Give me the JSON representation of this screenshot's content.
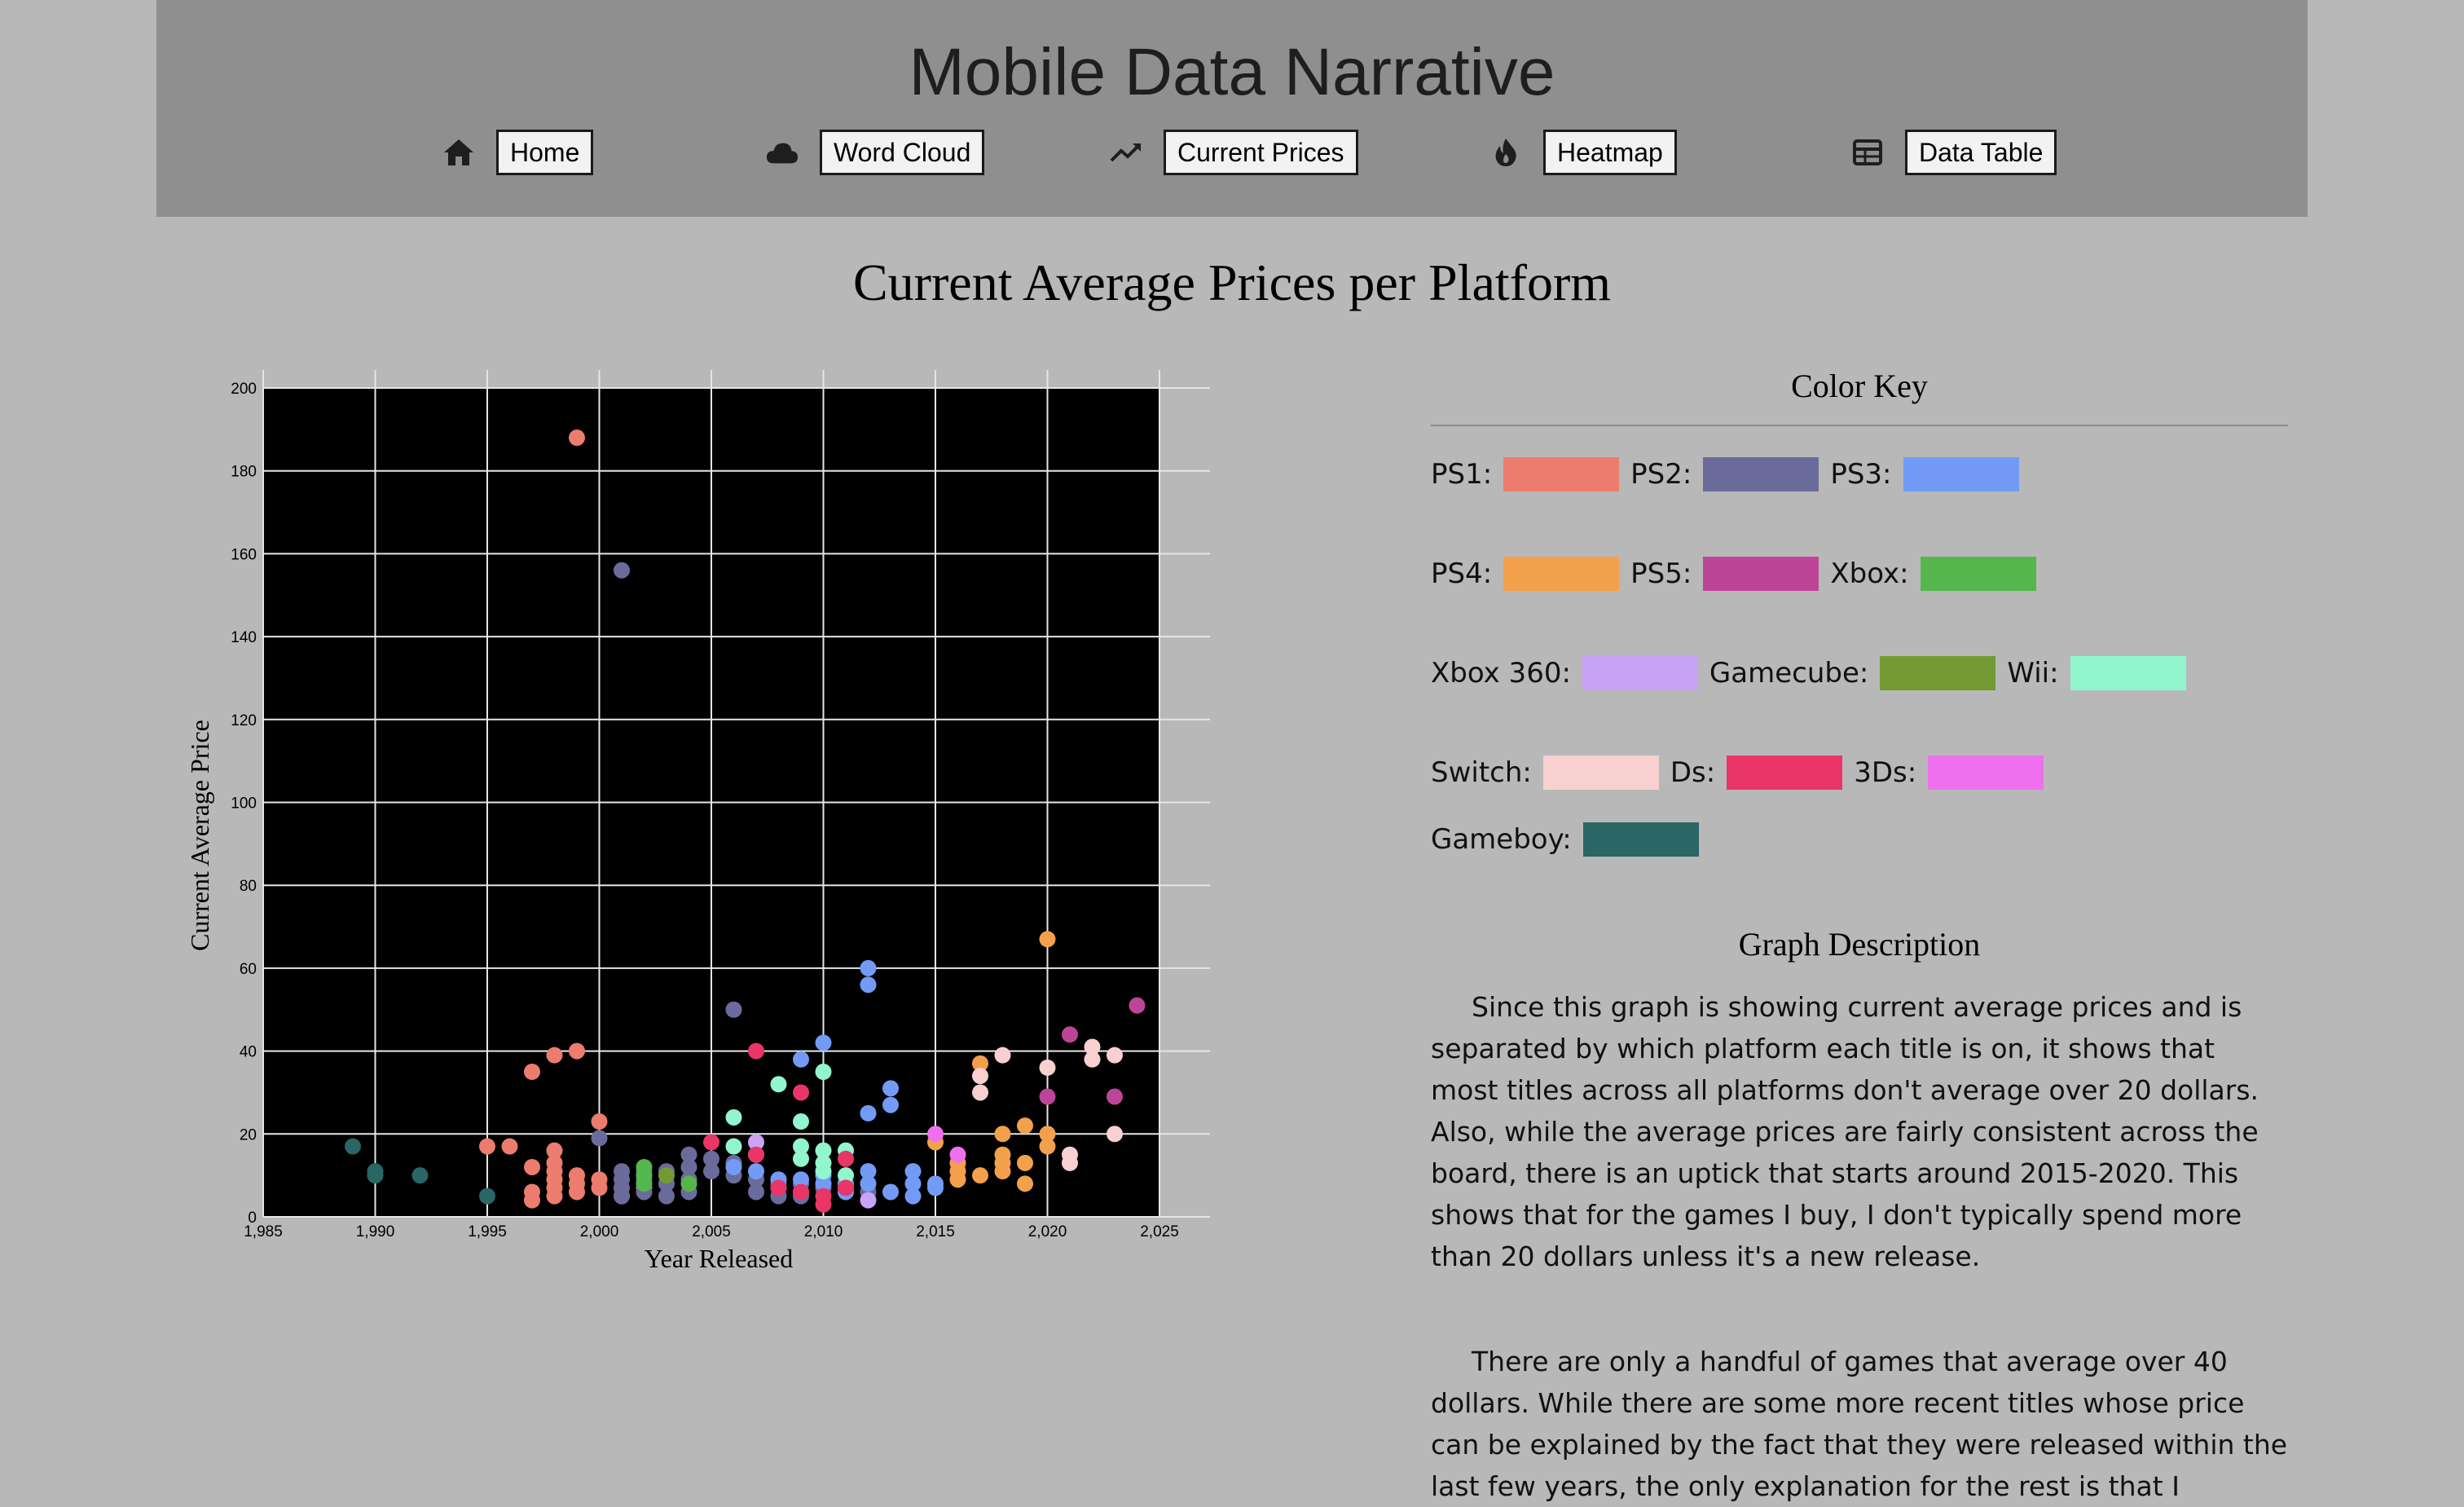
{
  "header": {
    "title": "Mobile Data Narrative",
    "nav": [
      {
        "label": "Home",
        "icon": "home-icon"
      },
      {
        "label": "Word Cloud",
        "icon": "cloud-icon"
      },
      {
        "label": "Current Prices",
        "icon": "trend-icon"
      },
      {
        "label": "Heatmap",
        "icon": "fire-icon"
      },
      {
        "label": "Data Table",
        "icon": "table-icon"
      }
    ]
  },
  "page": {
    "title": "Current Average Prices per Platform"
  },
  "colors": {
    "plot_background": "#000000",
    "grid": "#e6e6e6"
  },
  "color_key": {
    "title": "Color Key",
    "items": [
      {
        "label": "PS1:",
        "color": "#ec7c6e"
      },
      {
        "label": "PS2:",
        "color": "#6b6b9b"
      },
      {
        "label": "PS3:",
        "color": "#739bf6"
      },
      {
        "label": "PS4:",
        "color": "#f3a04c"
      },
      {
        "label": "PS5:",
        "color": "#bd4598"
      },
      {
        "label": "Xbox:",
        "color": "#55b64e"
      },
      {
        "label": "Xbox 360:",
        "color": "#c9a3f6"
      },
      {
        "label": "Gamecube:",
        "color": "#749a34"
      },
      {
        "label": "Wii:",
        "color": "#91f5cd"
      },
      {
        "label": "Switch:",
        "color": "#f8d0d0"
      },
      {
        "label": "Ds:",
        "color": "#e93567"
      },
      {
        "label": "3Ds:",
        "color": "#ef70ee"
      },
      {
        "label": "Gameboy:",
        "color": "#2a6666"
      }
    ]
  },
  "description": {
    "title": "Graph Description",
    "paragraphs": [
      "Since this graph is showing current average prices and is separated by which platform each title is on, it shows that most titles across all platforms don't average over 20 dollars. Also, while the average prices are fairly consistent across the board, there is an uptick that starts around 2015-2020. This shows that for the games I buy, I don't typically spend more than 20 dollars unless it's a new release.",
      "There are only a handful of games that average over 40 dollars. While there are some more recent titles whose price can be explained by the fact that they were released within the last few years, the only explanation for the rest is that I"
    ]
  },
  "chart_data": {
    "type": "scatter",
    "title": "",
    "xlabel": "Year Released",
    "ylabel": "Current Average Price",
    "xlim": [
      1985,
      2025
    ],
    "ylim": [
      0,
      200
    ],
    "x_ticks": [
      "1,985",
      "1,990",
      "1,995",
      "2,000",
      "2,005",
      "2,010",
      "2,015",
      "2,020",
      "2,025"
    ],
    "x_tick_values": [
      1985,
      1990,
      1995,
      2000,
      2005,
      2010,
      2015,
      2020,
      2025
    ],
    "y_ticks": [
      "0",
      "20",
      "40",
      "60",
      "80",
      "100",
      "120",
      "140",
      "160",
      "180",
      "200"
    ],
    "y_tick_values": [
      0,
      20,
      40,
      60,
      80,
      100,
      120,
      140,
      160,
      180,
      200
    ],
    "grid": true,
    "series": [
      {
        "name": "PS1",
        "points": [
          [
            1999,
            188
          ],
          [
            1997,
            35
          ],
          [
            1998,
            39
          ],
          [
            1999,
            40
          ],
          [
            2000,
            23
          ],
          [
            1995,
            17
          ],
          [
            1996,
            17
          ],
          [
            1997,
            12
          ],
          [
            1997,
            6
          ],
          [
            1997,
            4
          ],
          [
            1998,
            16
          ],
          [
            1998,
            13
          ],
          [
            1998,
            11
          ],
          [
            1998,
            9
          ],
          [
            1998,
            7
          ],
          [
            1998,
            5
          ],
          [
            1999,
            10
          ],
          [
            1999,
            8
          ],
          [
            1999,
            6
          ],
          [
            2000,
            9
          ],
          [
            2000,
            7
          ],
          [
            2001,
            5
          ],
          [
            2002,
            7
          ]
        ]
      },
      {
        "name": "PS2",
        "points": [
          [
            2001,
            156
          ],
          [
            2006,
            50
          ],
          [
            2000,
            19
          ],
          [
            2001,
            11
          ],
          [
            2001,
            9
          ],
          [
            2001,
            7
          ],
          [
            2001,
            5
          ],
          [
            2002,
            11
          ],
          [
            2002,
            9
          ],
          [
            2002,
            6
          ],
          [
            2003,
            11
          ],
          [
            2003,
            8
          ],
          [
            2003,
            5
          ],
          [
            2004,
            15
          ],
          [
            2004,
            12
          ],
          [
            2004,
            9
          ],
          [
            2004,
            6
          ],
          [
            2005,
            14
          ],
          [
            2005,
            11
          ],
          [
            2006,
            13
          ],
          [
            2006,
            10
          ],
          [
            2007,
            9
          ],
          [
            2007,
            6
          ],
          [
            2008,
            8
          ],
          [
            2008,
            5
          ],
          [
            2009,
            8
          ],
          [
            2009,
            5
          ],
          [
            2010,
            7
          ],
          [
            2011,
            7
          ],
          [
            2012,
            6
          ]
        ]
      },
      {
        "name": "PS3",
        "points": [
          [
            2012,
            60
          ],
          [
            2012,
            56
          ],
          [
            2010,
            42
          ],
          [
            2009,
            38
          ],
          [
            2013,
            31
          ],
          [
            2013,
            27
          ],
          [
            2012,
            25
          ],
          [
            2006,
            12
          ],
          [
            2007,
            11
          ],
          [
            2008,
            9
          ],
          [
            2008,
            7
          ],
          [
            2009,
            9
          ],
          [
            2009,
            6
          ],
          [
            2010,
            10
          ],
          [
            2010,
            8
          ],
          [
            2011,
            8
          ],
          [
            2011,
            6
          ],
          [
            2012,
            11
          ],
          [
            2012,
            8
          ],
          [
            2013,
            6
          ],
          [
            2014,
            11
          ],
          [
            2014,
            8
          ],
          [
            2014,
            5
          ],
          [
            2015,
            8
          ],
          [
            2015,
            7
          ]
        ]
      },
      {
        "name": "PS4",
        "points": [
          [
            2020,
            67
          ],
          [
            2017,
            37
          ],
          [
            2019,
            22
          ],
          [
            2018,
            20
          ],
          [
            2020,
            20
          ],
          [
            2020,
            17
          ],
          [
            2015,
            18
          ],
          [
            2016,
            13
          ],
          [
            2016,
            11
          ],
          [
            2016,
            9
          ],
          [
            2017,
            10
          ],
          [
            2018,
            15
          ],
          [
            2018,
            13
          ],
          [
            2018,
            11
          ],
          [
            2019,
            13
          ],
          [
            2019,
            8
          ]
        ]
      },
      {
        "name": "PS5",
        "points": [
          [
            2024,
            51
          ],
          [
            2021,
            44
          ],
          [
            2020,
            29
          ],
          [
            2023,
            29
          ]
        ]
      },
      {
        "name": "Xbox",
        "points": [
          [
            2002,
            12
          ],
          [
            2002,
            10
          ],
          [
            2002,
            8
          ],
          [
            2004,
            8
          ]
        ]
      },
      {
        "name": "Xbox 360",
        "points": [
          [
            2007,
            18
          ],
          [
            2012,
            4
          ]
        ]
      },
      {
        "name": "Gamecube",
        "points": [
          [
            2003,
            10
          ]
        ]
      },
      {
        "name": "Wii",
        "points": [
          [
            2006,
            24
          ],
          [
            2006,
            17
          ],
          [
            2008,
            32
          ],
          [
            2009,
            23
          ],
          [
            2009,
            17
          ],
          [
            2009,
            14
          ],
          [
            2010,
            35
          ],
          [
            2010,
            16
          ],
          [
            2010,
            13
          ],
          [
            2010,
            11
          ],
          [
            2011,
            16
          ],
          [
            2011,
            10
          ],
          [
            2007,
            15
          ]
        ]
      },
      {
        "name": "Switch",
        "points": [
          [
            2017,
            34
          ],
          [
            2017,
            30
          ],
          [
            2018,
            39
          ],
          [
            2020,
            36
          ],
          [
            2022,
            41
          ],
          [
            2022,
            38
          ],
          [
            2023,
            39
          ],
          [
            2021,
            15
          ],
          [
            2021,
            13
          ],
          [
            2023,
            20
          ]
        ]
      },
      {
        "name": "Ds",
        "points": [
          [
            2007,
            40
          ],
          [
            2005,
            18
          ],
          [
            2007,
            15
          ],
          [
            2009,
            30
          ],
          [
            2011,
            14
          ],
          [
            2008,
            7
          ],
          [
            2009,
            6
          ],
          [
            2010,
            5
          ],
          [
            2010,
            3
          ],
          [
            2011,
            7
          ]
        ]
      },
      {
        "name": "3Ds",
        "points": [
          [
            2015,
            20
          ],
          [
            2016,
            15
          ]
        ]
      },
      {
        "name": "Gameboy",
        "points": [
          [
            1989,
            17
          ],
          [
            1990,
            11
          ],
          [
            1990,
            10
          ],
          [
            1992,
            10
          ],
          [
            1995,
            5
          ]
        ]
      }
    ]
  }
}
